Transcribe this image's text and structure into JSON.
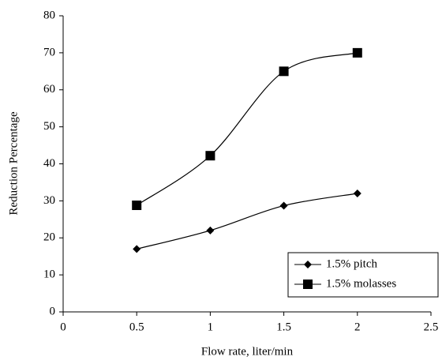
{
  "chart_data": {
    "type": "line",
    "xlabel": "Flow rate, liter/min",
    "ylabel": "Reduction Percentage",
    "x": [
      0.5,
      1,
      1.5,
      2
    ],
    "series": [
      {
        "name": "1.5% pitch",
        "color": "#000000",
        "marker": "diamond",
        "values": [
          17,
          22,
          28.7,
          32
        ]
      },
      {
        "name": "1.5% molasses",
        "color": "#000000",
        "marker": "square",
        "values": [
          28.8,
          42.2,
          65,
          70
        ]
      }
    ],
    "xlim": [
      0,
      2.5
    ],
    "xticks": [
      0,
      0.5,
      1,
      1.5,
      2,
      2.5
    ],
    "ylim": [
      0,
      80
    ],
    "yticks": [
      0,
      10,
      20,
      30,
      40,
      50,
      60,
      70,
      80
    ],
    "grid": false,
    "smooth": true,
    "legend": "lower right"
  }
}
